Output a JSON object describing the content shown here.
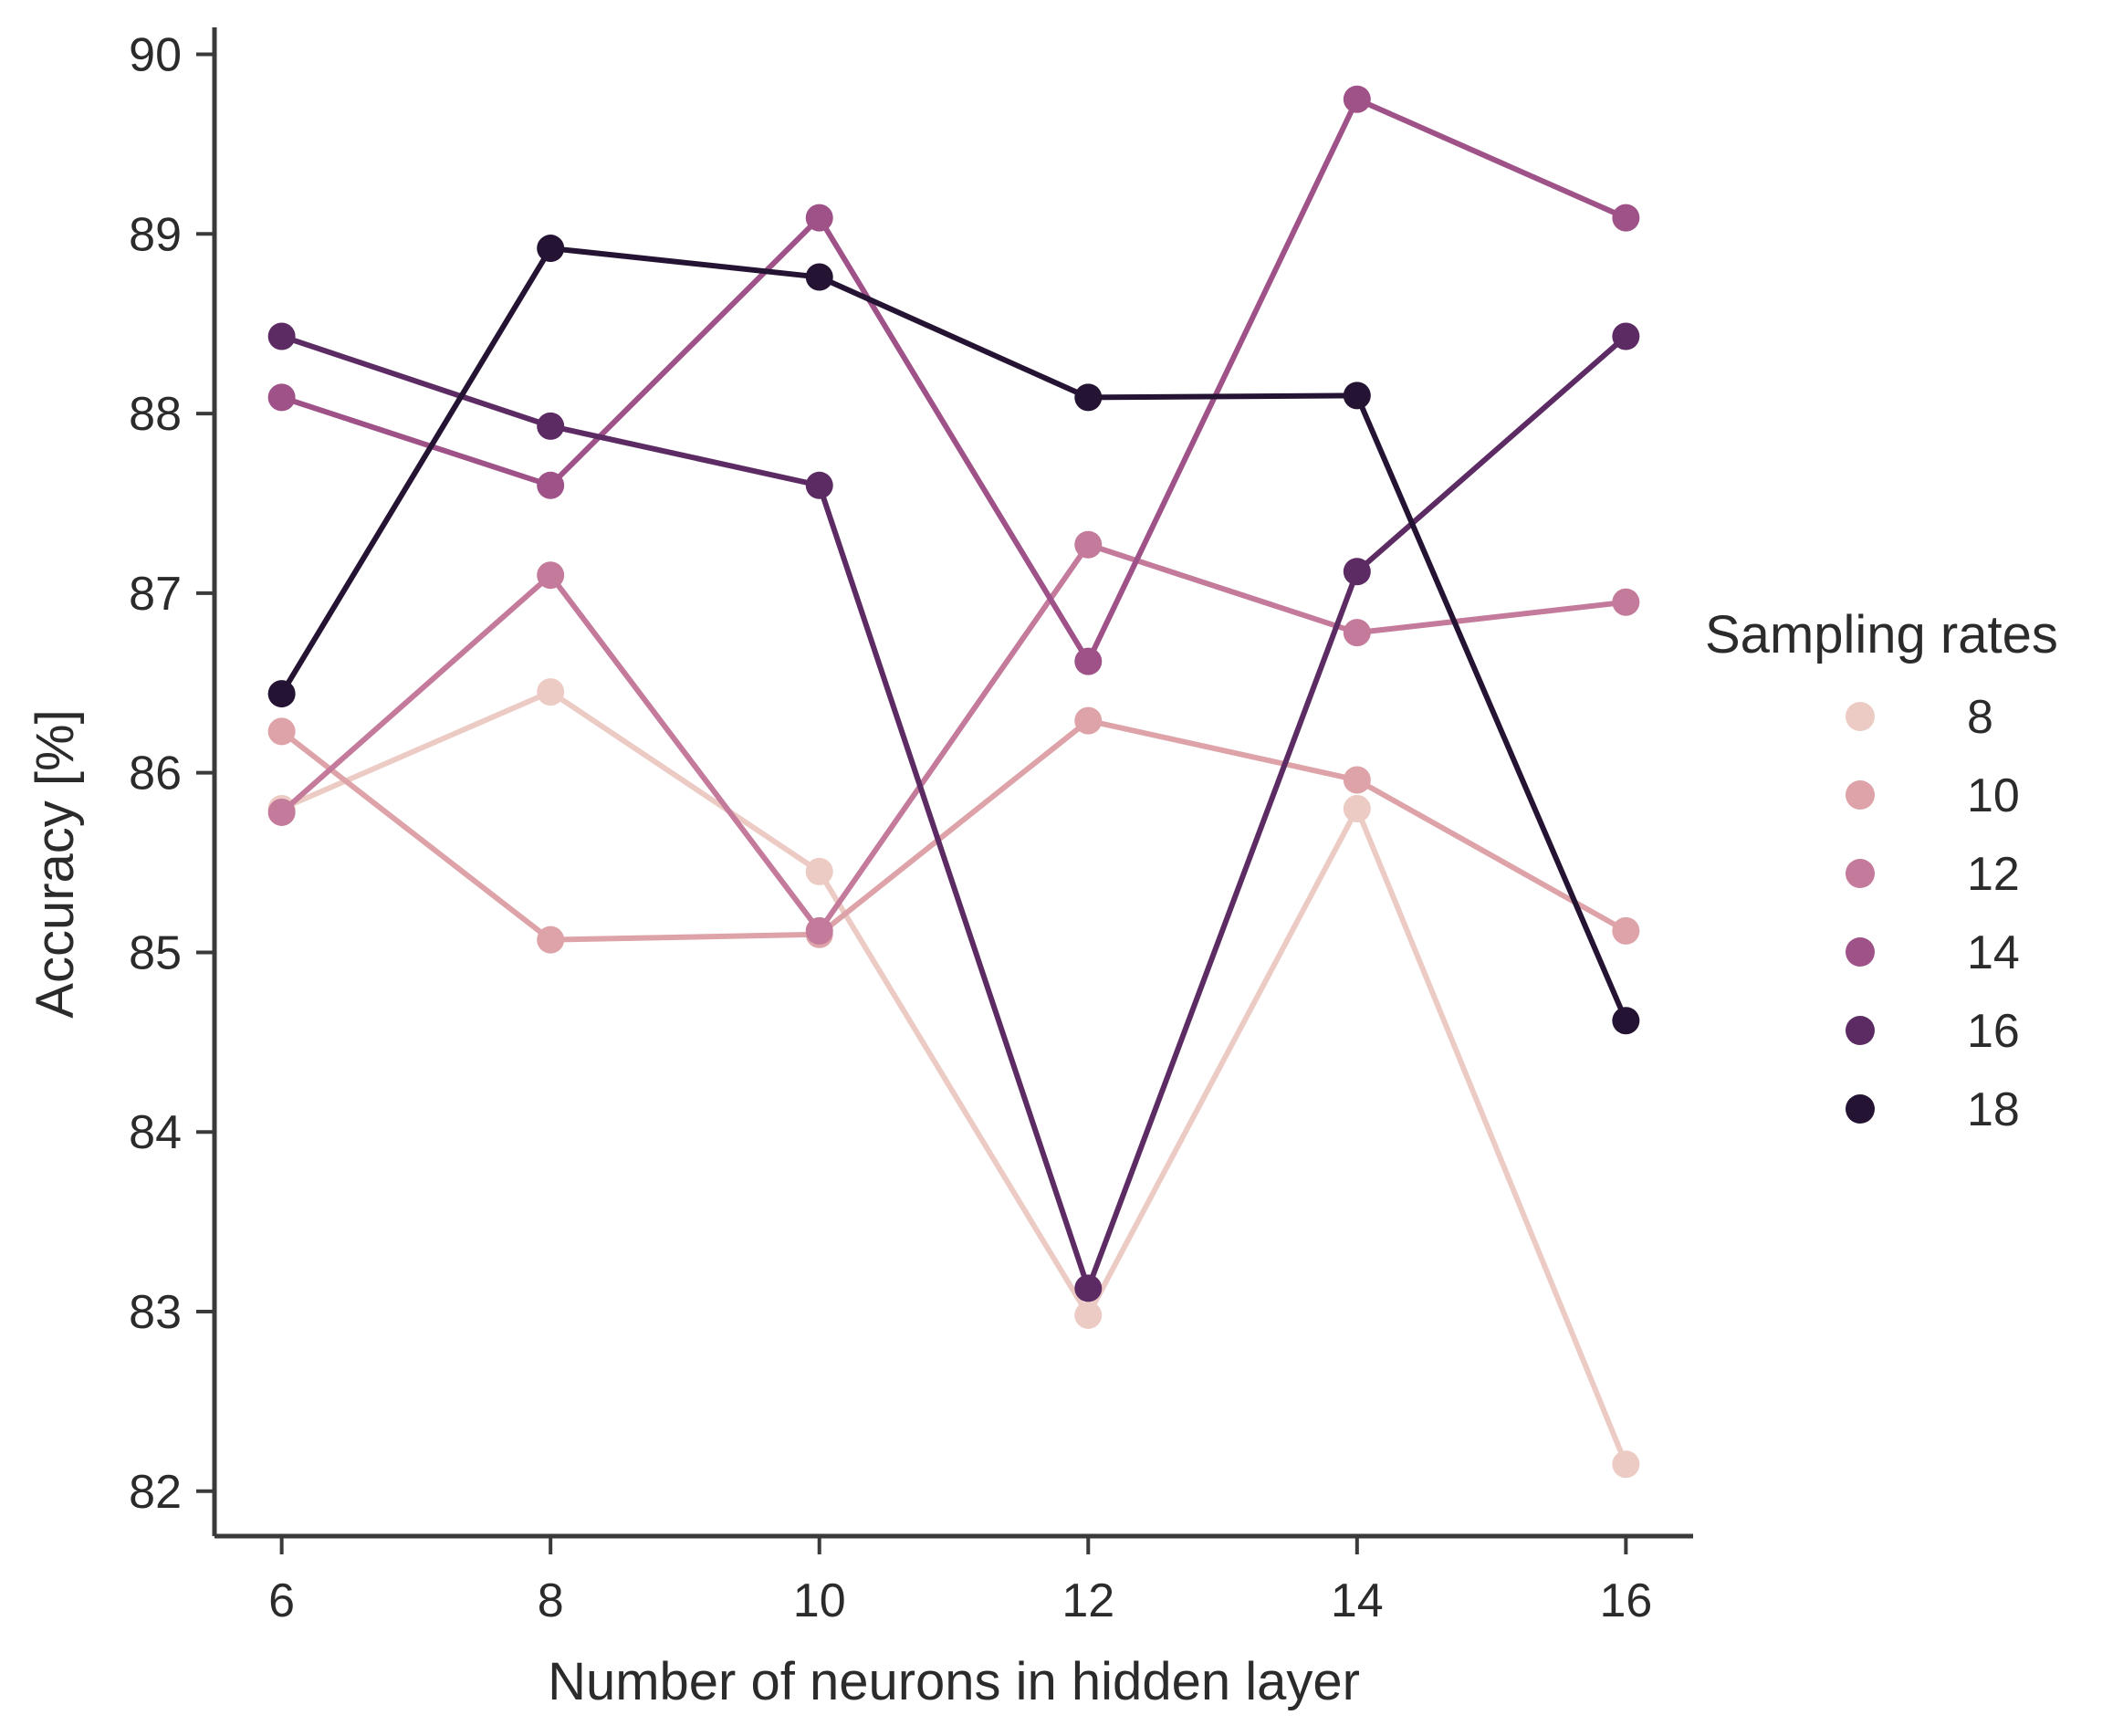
{
  "chart_data": {
    "type": "line",
    "title": "",
    "xlabel": "Number of neurons in hidden layer",
    "ylabel": "Accuracy [%]",
    "x": [
      6,
      8,
      10,
      12,
      14,
      16
    ],
    "xlim": [
      5.5,
      16.5
    ],
    "ylim": [
      81.75,
      90.15
    ],
    "x_ticks": [
      6,
      8,
      10,
      12,
      14,
      16
    ],
    "y_ticks": [
      82,
      83,
      84,
      85,
      86,
      87,
      88,
      89,
      90
    ],
    "grid": false,
    "legend": {
      "title": "Sampling rates",
      "position": "right"
    },
    "series": [
      {
        "name": "8",
        "color": "#eccbc4",
        "values": [
          85.8,
          86.45,
          85.45,
          82.98,
          85.8,
          82.15
        ]
      },
      {
        "name": "10",
        "color": "#dda3a8",
        "values": [
          86.23,
          85.07,
          85.1,
          86.29,
          85.96,
          85.12
        ]
      },
      {
        "name": "12",
        "color": "#c47a9a",
        "values": [
          85.78,
          87.1,
          85.12,
          87.27,
          86.78,
          86.95
        ]
      },
      {
        "name": "14",
        "color": "#9e5288",
        "values": [
          88.09,
          87.6,
          89.09,
          86.62,
          89.75,
          89.09
        ]
      },
      {
        "name": "16",
        "color": "#5d2b63",
        "values": [
          88.43,
          87.93,
          87.6,
          83.13,
          87.12,
          88.43
        ]
      },
      {
        "name": "18",
        "color": "#251333",
        "values": [
          86.44,
          88.92,
          88.76,
          88.09,
          88.1,
          84.62
        ]
      }
    ],
    "axis_color": "#3a3a3a"
  }
}
